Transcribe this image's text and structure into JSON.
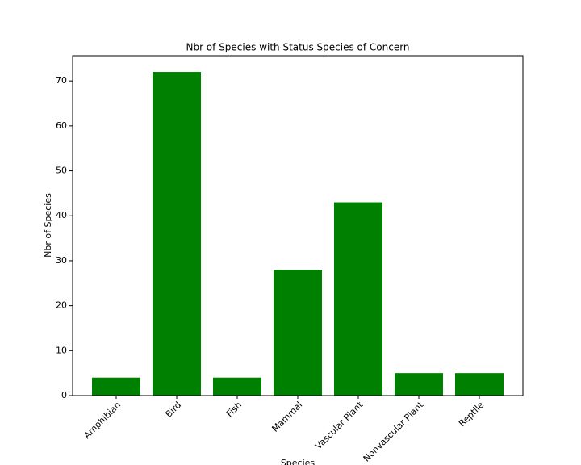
{
  "chart_data": {
    "type": "bar",
    "title": "Nbr of Species with Status Species of Concern",
    "xlabel": "Species",
    "ylabel": "Nbr of Species",
    "categories": [
      "Amphibian",
      "Bird",
      "Fish",
      "Mammal",
      "Vascular Plant",
      "Nonvascular Plant",
      "Reptile"
    ],
    "values": [
      4,
      72,
      4,
      28,
      43,
      5,
      5
    ],
    "color": "#008000",
    "ylim": [
      0,
      75.6
    ],
    "yticks": [
      0,
      10,
      20,
      30,
      40,
      50,
      60,
      70
    ],
    "grid": false
  }
}
